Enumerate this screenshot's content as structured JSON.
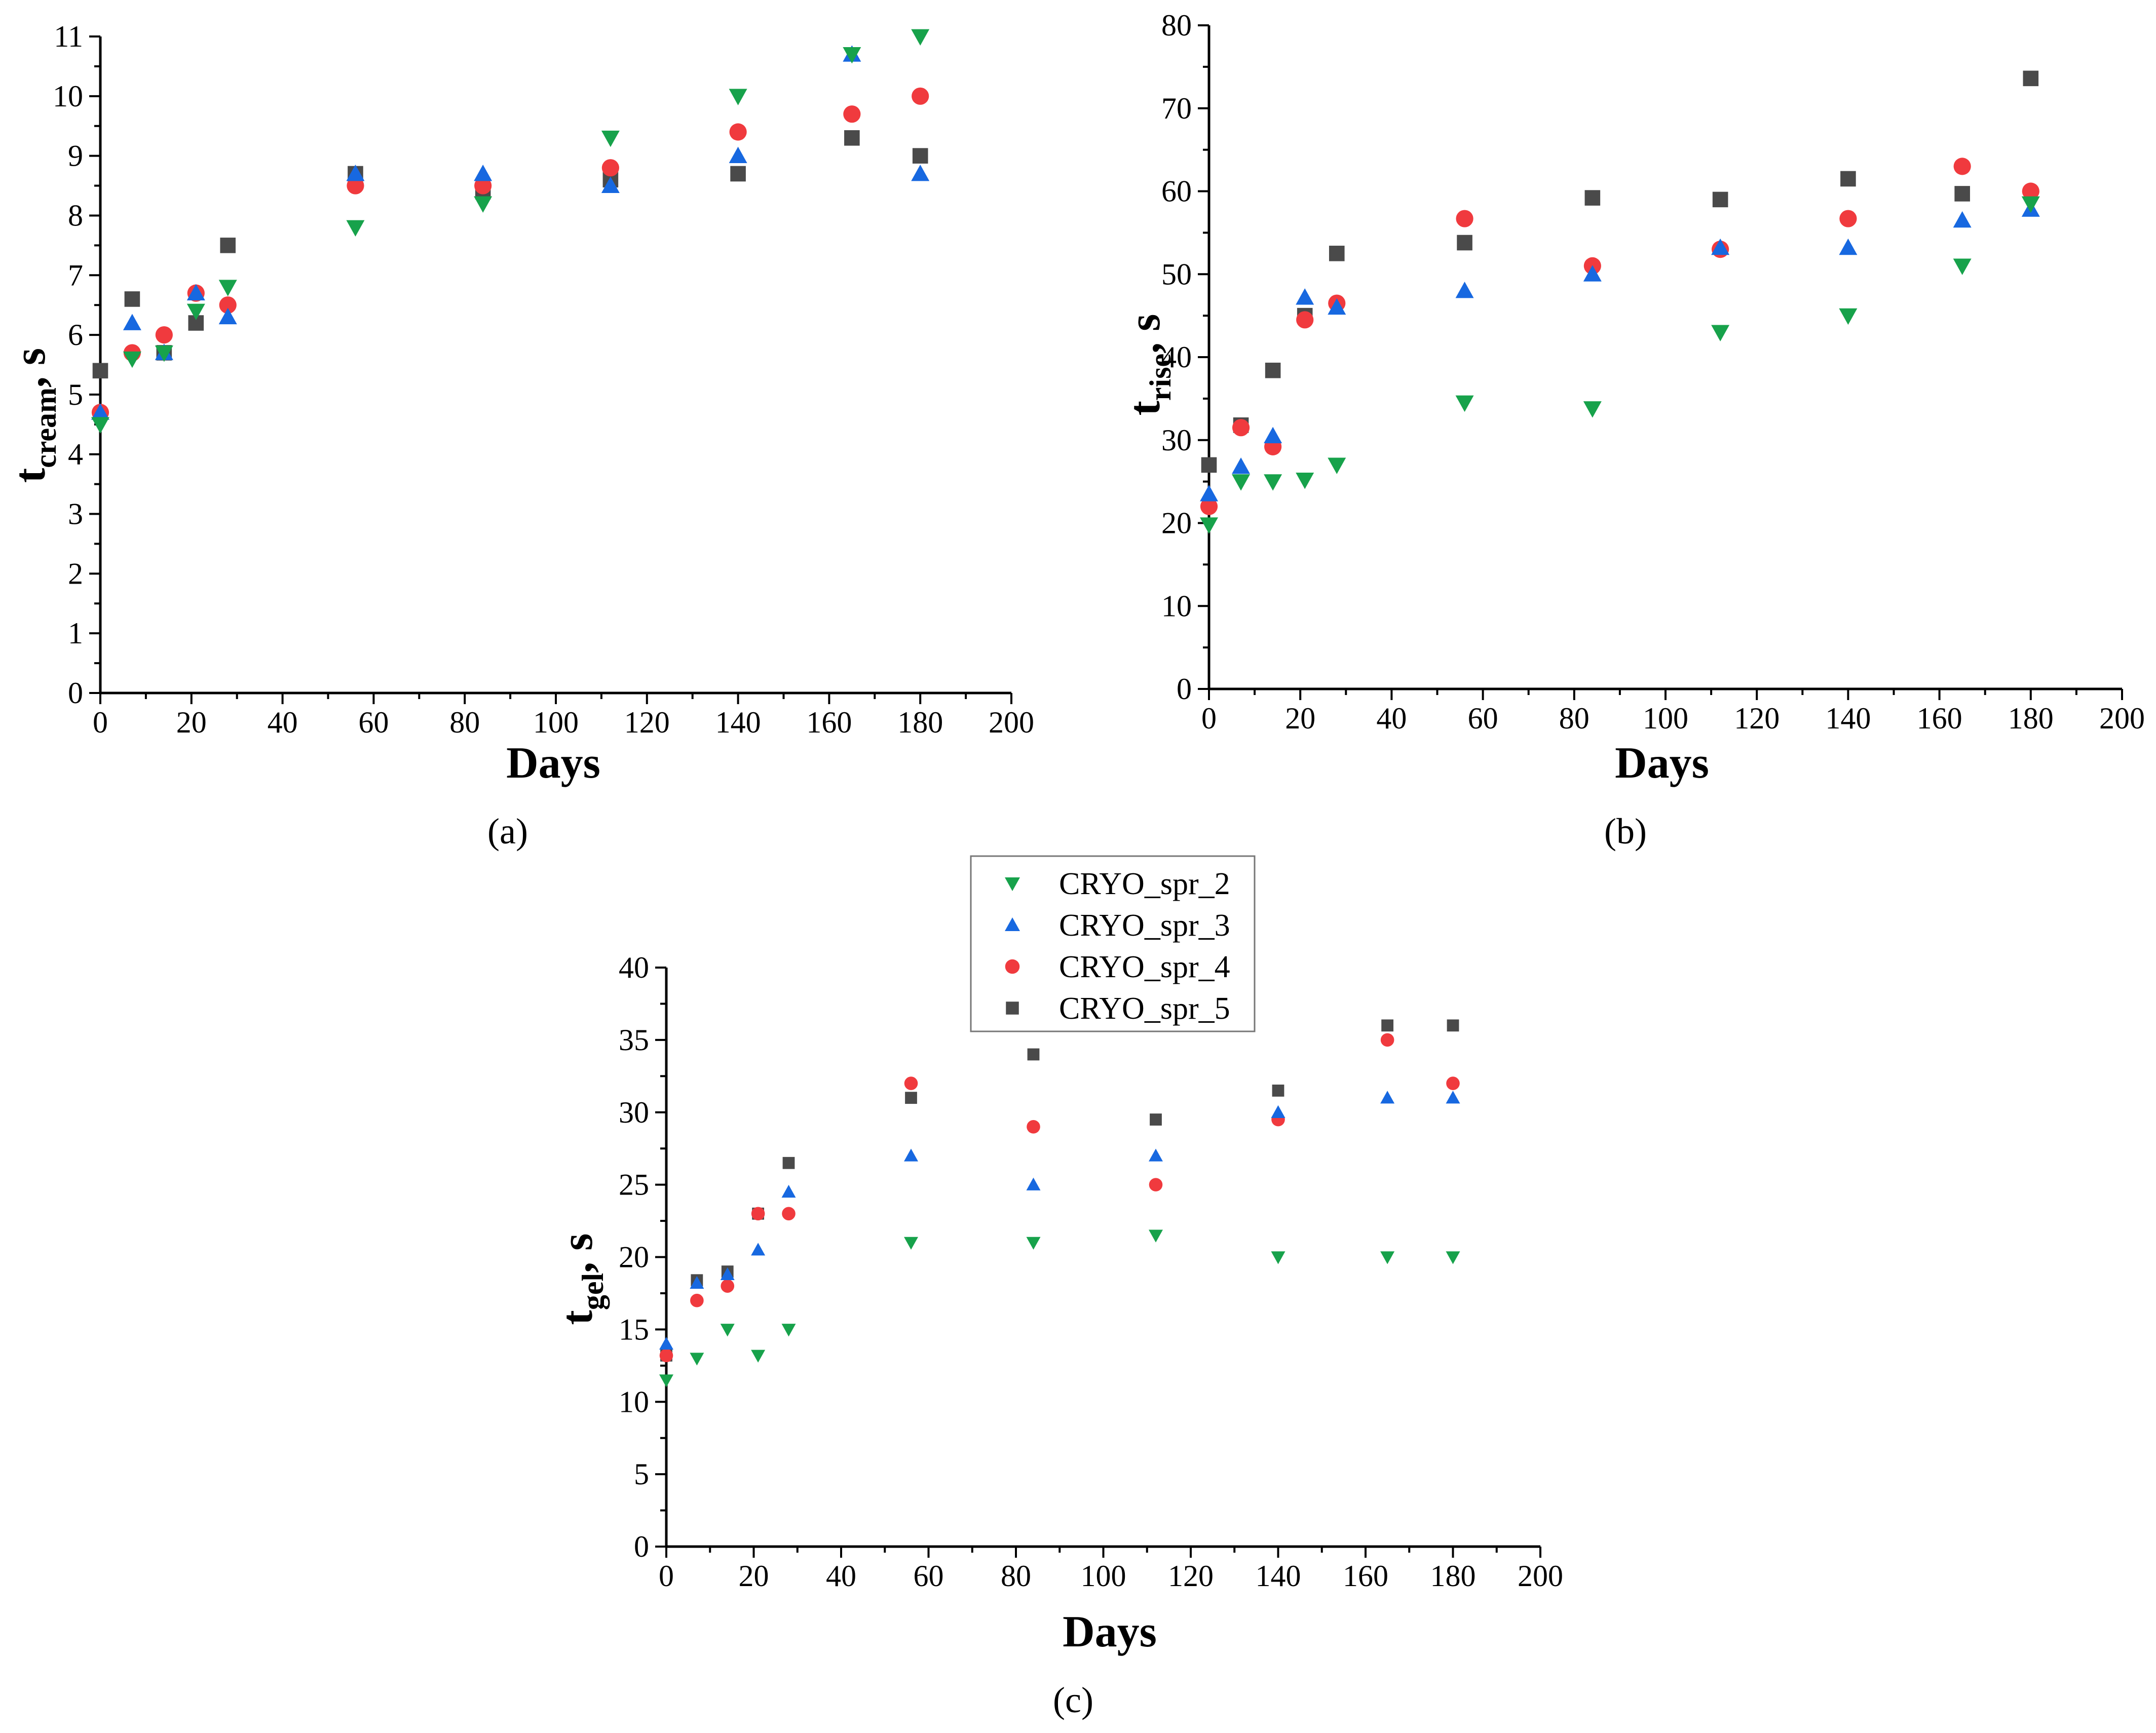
{
  "legend": {
    "entries": [
      {
        "name": "CRYO_spr_2",
        "color": "#17a24b",
        "marker": "triangle-down"
      },
      {
        "name": "CRYO_spr_3",
        "color": "#1768e0",
        "marker": "triangle-up"
      },
      {
        "name": "CRYO_spr_4",
        "color": "#f03a3e",
        "marker": "circle"
      },
      {
        "name": "CRYO_spr_5",
        "color": "#4a4a4a",
        "marker": "square"
      }
    ]
  },
  "chart_data": [
    {
      "type": "scatter",
      "panel_label": "(a)",
      "title": "",
      "xlabel": "Days",
      "ylabel_main": "t",
      "ylabel_sub": "cream",
      "ylabel_suffix": ", s",
      "xlim": [
        0,
        200
      ],
      "ylim": [
        0,
        11
      ],
      "xticks": [
        0,
        20,
        40,
        60,
        80,
        100,
        120,
        140,
        160,
        180,
        200
      ],
      "yticks": [
        0,
        1,
        2,
        3,
        4,
        5,
        6,
        7,
        8,
        9,
        10,
        11
      ],
      "grid": false,
      "x": [
        0,
        7,
        14,
        21,
        28,
        56,
        84,
        112,
        140,
        165,
        180
      ],
      "series": [
        {
          "name": "CRYO_spr_2",
          "values": [
            4.5,
            5.6,
            5.7,
            6.4,
            6.8,
            7.8,
            8.2,
            9.3,
            10.0,
            10.7,
            11.0
          ]
        },
        {
          "name": "CRYO_spr_3",
          "values": [
            4.7,
            6.2,
            5.7,
            6.7,
            6.3,
            8.7,
            8.7,
            8.5,
            9.0,
            10.7,
            8.7
          ]
        },
        {
          "name": "CRYO_spr_4",
          "values": [
            4.7,
            5.7,
            6.0,
            6.7,
            6.5,
            8.5,
            8.5,
            8.8,
            9.4,
            9.7,
            10.0
          ]
        },
        {
          "name": "CRYO_spr_5",
          "values": [
            5.4,
            6.6,
            5.7,
            6.2,
            7.5,
            8.7,
            8.4,
            8.6,
            8.7,
            9.3,
            9.0
          ]
        }
      ]
    },
    {
      "type": "scatter",
      "panel_label": "(b)",
      "title": "",
      "xlabel": "Days",
      "ylabel_main": "t",
      "ylabel_sub": "rise",
      "ylabel_suffix": ", s",
      "xlim": [
        0,
        200
      ],
      "ylim": [
        0,
        80
      ],
      "xticks": [
        0,
        20,
        40,
        60,
        80,
        100,
        120,
        140,
        160,
        180,
        200
      ],
      "yticks": [
        0,
        10,
        20,
        30,
        40,
        50,
        60,
        70,
        80
      ],
      "grid": false,
      "x": [
        0,
        7,
        14,
        21,
        28,
        56,
        84,
        112,
        140,
        165,
        180
      ],
      "series": [
        {
          "name": "CRYO_spr_2",
          "values": [
            19.8,
            25.0,
            25.0,
            25.2,
            27.0,
            34.5,
            33.8,
            43.0,
            45.0,
            51.0,
            58.5
          ]
        },
        {
          "name": "CRYO_spr_3",
          "values": [
            23.5,
            26.8,
            30.5,
            47.2,
            46.0,
            48.0,
            50.0,
            53.2,
            53.2,
            56.5,
            57.8
          ]
        },
        {
          "name": "CRYO_spr_4",
          "values": [
            22.0,
            31.5,
            29.2,
            44.5,
            46.5,
            56.7,
            51.0,
            53.0,
            56.7,
            63.0,
            60.0
          ]
        },
        {
          "name": "CRYO_spr_5",
          "values": [
            27.0,
            31.8,
            38.4,
            45.0,
            52.5,
            53.8,
            59.2,
            59.0,
            61.5,
            59.7,
            73.6
          ]
        }
      ]
    },
    {
      "type": "scatter",
      "panel_label": "(c)",
      "title": "",
      "xlabel": "Days",
      "ylabel_main": "t",
      "ylabel_sub": "gel",
      "ylabel_suffix": ", s",
      "xlim": [
        0,
        200
      ],
      "ylim": [
        0,
        40
      ],
      "xticks": [
        0,
        20,
        40,
        60,
        80,
        100,
        120,
        140,
        160,
        180,
        200
      ],
      "yticks": [
        0,
        5,
        10,
        15,
        20,
        25,
        30,
        35,
        40
      ],
      "grid": false,
      "x": [
        0,
        7,
        14,
        21,
        28,
        56,
        84,
        112,
        140,
        165,
        180
      ],
      "series": [
        {
          "name": "CRYO_spr_2",
          "values": [
            11.5,
            13.0,
            15.0,
            13.2,
            15.0,
            21.0,
            21.0,
            21.5,
            20.0,
            20.0,
            20.0
          ]
        },
        {
          "name": "CRYO_spr_3",
          "values": [
            14.0,
            18.2,
            18.8,
            20.5,
            24.5,
            27.0,
            25.0,
            27.0,
            30.0,
            31.0,
            31.0
          ]
        },
        {
          "name": "CRYO_spr_4",
          "values": [
            13.2,
            17.0,
            18.0,
            23.0,
            23.0,
            32.0,
            29.0,
            25.0,
            29.5,
            35.0,
            32.0
          ]
        },
        {
          "name": "CRYO_spr_5",
          "values": [
            13.2,
            18.4,
            19.0,
            23.0,
            26.5,
            31.0,
            34.0,
            29.5,
            31.5,
            36.0,
            36.0
          ]
        }
      ]
    }
  ]
}
